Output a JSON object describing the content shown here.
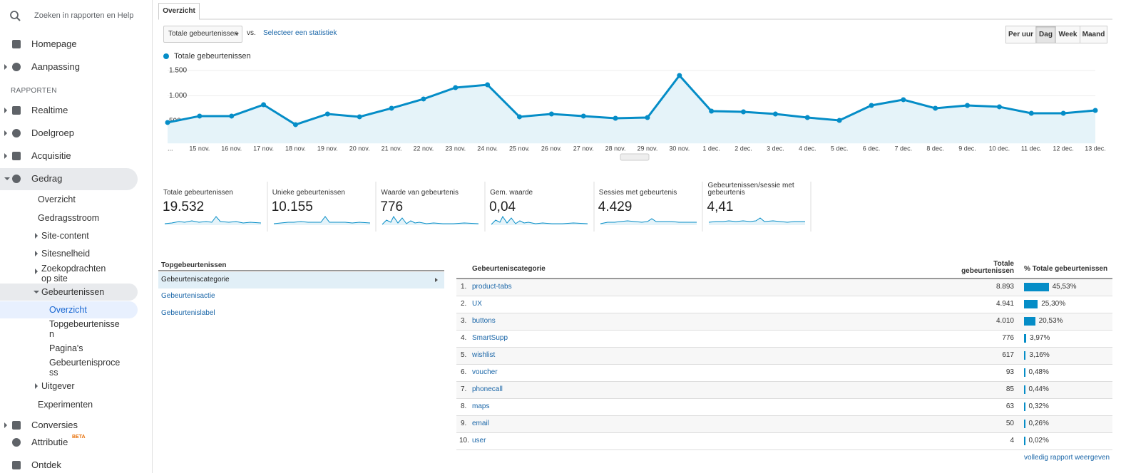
{
  "sidebar": {
    "search_placeholder": "Zoeken in rapporten en Help",
    "section": "RAPPORTEN",
    "nav": [
      {
        "label": "Homepage"
      },
      {
        "label": "Aanpassing"
      },
      {
        "label": "Realtime"
      },
      {
        "label": "Doelgroep"
      },
      {
        "label": "Acquisitie"
      },
      {
        "label": "Gedrag"
      },
      {
        "label": "Overzicht"
      },
      {
        "label": "Gedragsstroom"
      },
      {
        "label": "Site-content"
      },
      {
        "label": "Sitesnelheid"
      },
      {
        "label": "Zoekopdrachten op site"
      },
      {
        "label": "Gebeurtenissen"
      },
      {
        "label": "Overzicht"
      },
      {
        "label": "Topgebeurtenissen"
      },
      {
        "label": "Pagina's"
      },
      {
        "label": "Gebeurtenisprocess"
      },
      {
        "label": "Uitgever"
      },
      {
        "label": "Experimenten"
      },
      {
        "label": "Conversies"
      },
      {
        "label": "Attributie",
        "badge": "BETA"
      },
      {
        "label": "Ontdek"
      }
    ]
  },
  "tab": "Overzicht",
  "controls": {
    "metric": "Totale gebeurtenissen",
    "vs": "vs.",
    "compare": "Selecteer een statistiek",
    "periods": [
      "Per uur",
      "Dag",
      "Week",
      "Maand"
    ],
    "active_period": "Dag"
  },
  "chart_data": {
    "type": "line",
    "categories": [
      "...",
      "15 nov.",
      "16 nov.",
      "17 nov.",
      "18 nov.",
      "19 nov.",
      "20 nov.",
      "21 nov.",
      "22 nov.",
      "23 nov.",
      "24 nov.",
      "25 nov.",
      "26 nov.",
      "27 nov.",
      "28 nov.",
      "29 nov.",
      "30 nov.",
      "1 dec.",
      "2 dec.",
      "3 dec.",
      "4 dec.",
      "5 dec.",
      "6 dec.",
      "7 dec.",
      "8 dec.",
      "9 dec.",
      "10 dec.",
      "11 dec.",
      "12 dec.",
      "13 dec."
    ],
    "series": [
      {
        "name": "Totale gebeurtenissen",
        "color": "#058dc7",
        "values": [
          472,
          599,
          599,
          824,
          430,
          641,
          585,
          754,
          937,
          1162,
          1218,
          585,
          641,
          599,
          556,
          570,
          1401,
          697,
          683,
          641,
          570,
          514,
          810,
          923,
          754,
          810,
          782,
          655,
          655,
          711
        ]
      }
    ],
    "ylim": [
      60,
      1600
    ],
    "yticks": [
      500,
      {
        "value": 1000,
        "label": "1.000"
      },
      {
        "value": 1500,
        "label": "1.500"
      }
    ],
    "grid": true
  },
  "metrics": [
    {
      "label": "Totale gebeurtenissen",
      "value": "19.532"
    },
    {
      "label": "Unieke gebeurtenissen",
      "value": "10.155"
    },
    {
      "label": "Waarde van gebeurtenis",
      "value": "776"
    },
    {
      "label": "Gem. waarde",
      "value": "0,04"
    },
    {
      "label": "Sessies met gebeurtenis",
      "value": "4.429"
    },
    {
      "label": "Gebeurtenissen/sessie met gebeurtenis",
      "value": "4,41"
    }
  ],
  "top_events": {
    "title": "Topgebeurtenissen",
    "dimensions": [
      "Gebeurteniscategorie",
      "Gebeurtenisactie",
      "Gebeurtenislabel"
    ]
  },
  "table": {
    "columns": [
      "Gebeurteniscategorie",
      "Totale gebeurtenissen",
      "% Totale gebeurtenissen"
    ],
    "rows": [
      {
        "rank": "1.",
        "name": "product-tabs",
        "total": "8.893",
        "pct": 45.53,
        "pct_label": "45,53%"
      },
      {
        "rank": "2.",
        "name": "UX",
        "total": "4.941",
        "pct": 25.3,
        "pct_label": "25,30%"
      },
      {
        "rank": "3.",
        "name": "buttons",
        "total": "4.010",
        "pct": 20.53,
        "pct_label": "20,53%"
      },
      {
        "rank": "4.",
        "name": "SmartSupp",
        "total": "776",
        "pct": 3.97,
        "pct_label": "3,97%"
      },
      {
        "rank": "5.",
        "name": "wishlist",
        "total": "617",
        "pct": 3.16,
        "pct_label": "3,16%"
      },
      {
        "rank": "6.",
        "name": "voucher",
        "total": "93",
        "pct": 0.48,
        "pct_label": "0,48%"
      },
      {
        "rank": "7.",
        "name": "phonecall",
        "total": "85",
        "pct": 0.44,
        "pct_label": "0,44%"
      },
      {
        "rank": "8.",
        "name": "maps",
        "total": "63",
        "pct": 0.32,
        "pct_label": "0,32%"
      },
      {
        "rank": "9.",
        "name": "email",
        "total": "50",
        "pct": 0.26,
        "pct_label": "0,26%"
      },
      {
        "rank": "10.",
        "name": "user",
        "total": "4",
        "pct": 0.02,
        "pct_label": "0,02%"
      }
    ]
  },
  "footer_link": "volledig rapport weergeven"
}
